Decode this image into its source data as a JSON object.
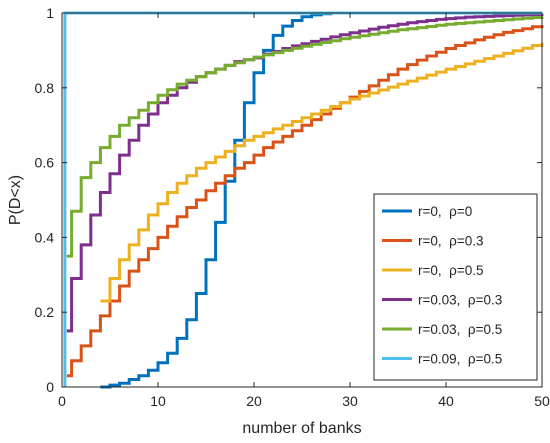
{
  "chart_data": {
    "type": "line",
    "title": "",
    "xlabel": "number of banks",
    "ylabel": "P(D<x)",
    "xlim": [
      0,
      50
    ],
    "ylim": [
      0,
      1
    ],
    "x_ticks": [
      "0",
      "10",
      "20",
      "30",
      "40",
      "50"
    ],
    "y_ticks": [
      "0",
      "0.2",
      "0.4",
      "0.6",
      "0.8",
      "1"
    ],
    "grid": false,
    "legend_position": "bottom-right",
    "series": [
      {
        "name": "r=0,  ρ=0",
        "color": "#0072BD",
        "points": [
          [
            4,
            0
          ],
          [
            5,
            0.005
          ],
          [
            6,
            0.01
          ],
          [
            7,
            0.02
          ],
          [
            8,
            0.03
          ],
          [
            9,
            0.045
          ],
          [
            10,
            0.065
          ],
          [
            11,
            0.09
          ],
          [
            12,
            0.13
          ],
          [
            13,
            0.18
          ],
          [
            14,
            0.25
          ],
          [
            15,
            0.34
          ],
          [
            16,
            0.44
          ],
          [
            17,
            0.55
          ],
          [
            18,
            0.66
          ],
          [
            19,
            0.76
          ],
          [
            20,
            0.84
          ],
          [
            21,
            0.9
          ],
          [
            22,
            0.94
          ],
          [
            23,
            0.965
          ],
          [
            24,
            0.98
          ],
          [
            25,
            0.99
          ],
          [
            26,
            0.995
          ],
          [
            27,
            0.998
          ],
          [
            28,
            1
          ],
          [
            50,
            1
          ]
        ]
      },
      {
        "name": "r=0,  ρ=0.3",
        "color": "#D95319",
        "points": [
          [
            0.5,
            0.03
          ],
          [
            1,
            0.07
          ],
          [
            2,
            0.11
          ],
          [
            3,
            0.15
          ],
          [
            4,
            0.19
          ],
          [
            5,
            0.23
          ],
          [
            6,
            0.27
          ],
          [
            7,
            0.31
          ],
          [
            8,
            0.34
          ],
          [
            9,
            0.37
          ],
          [
            10,
            0.4
          ],
          [
            11,
            0.43
          ],
          [
            12,
            0.455
          ],
          [
            13,
            0.48
          ],
          [
            14,
            0.5
          ],
          [
            15,
            0.525
          ],
          [
            16,
            0.545
          ],
          [
            17,
            0.565
          ],
          [
            18,
            0.585
          ],
          [
            19,
            0.6
          ],
          [
            20,
            0.62
          ],
          [
            21,
            0.64
          ],
          [
            22,
            0.655
          ],
          [
            23,
            0.67
          ],
          [
            24,
            0.685
          ],
          [
            25,
            0.7
          ],
          [
            26,
            0.715
          ],
          [
            27,
            0.73
          ],
          [
            28,
            0.745
          ],
          [
            29,
            0.76
          ],
          [
            30,
            0.775
          ],
          [
            31,
            0.79
          ],
          [
            32,
            0.805
          ],
          [
            33,
            0.82
          ],
          [
            34,
            0.835
          ],
          [
            35,
            0.85
          ],
          [
            36,
            0.862
          ],
          [
            37,
            0.874
          ],
          [
            38,
            0.885
          ],
          [
            39,
            0.895
          ],
          [
            40,
            0.905
          ],
          [
            41,
            0.913
          ],
          [
            42,
            0.92
          ],
          [
            43,
            0.928
          ],
          [
            44,
            0.935
          ],
          [
            45,
            0.942
          ],
          [
            46,
            0.948
          ],
          [
            47,
            0.953
          ],
          [
            48,
            0.958
          ],
          [
            49,
            0.963
          ],
          [
            50,
            0.968
          ]
        ]
      },
      {
        "name": "r=0,  ρ=0.5",
        "color": "#EDB120",
        "points": [
          [
            4,
            0.23
          ],
          [
            5,
            0.29
          ],
          [
            6,
            0.34
          ],
          [
            7,
            0.38
          ],
          [
            8,
            0.42
          ],
          [
            9,
            0.46
          ],
          [
            10,
            0.49
          ],
          [
            11,
            0.52
          ],
          [
            12,
            0.545
          ],
          [
            13,
            0.565
          ],
          [
            14,
            0.585
          ],
          [
            15,
            0.6
          ],
          [
            16,
            0.615
          ],
          [
            17,
            0.63
          ],
          [
            18,
            0.645
          ],
          [
            19,
            0.66
          ],
          [
            20,
            0.67
          ],
          [
            21,
            0.68
          ],
          [
            22,
            0.69
          ],
          [
            23,
            0.7
          ],
          [
            24,
            0.71
          ],
          [
            25,
            0.72
          ],
          [
            26,
            0.73
          ],
          [
            27,
            0.74
          ],
          [
            28,
            0.75
          ],
          [
            29,
            0.76
          ],
          [
            30,
            0.77
          ],
          [
            31,
            0.778
          ],
          [
            32,
            0.786
          ],
          [
            33,
            0.794
          ],
          [
            34,
            0.802
          ],
          [
            35,
            0.81
          ],
          [
            36,
            0.818
          ],
          [
            37,
            0.826
          ],
          [
            38,
            0.834
          ],
          [
            39,
            0.842
          ],
          [
            40,
            0.85
          ],
          [
            41,
            0.857
          ],
          [
            42,
            0.864
          ],
          [
            43,
            0.871
          ],
          [
            44,
            0.878
          ],
          [
            45,
            0.885
          ],
          [
            46,
            0.892
          ],
          [
            47,
            0.899
          ],
          [
            48,
            0.906
          ],
          [
            49,
            0.913
          ],
          [
            50,
            0.92
          ]
        ]
      },
      {
        "name": "r=0.03,  ρ=0.3",
        "color": "#7E2F8E",
        "points": [
          [
            0.5,
            0.15
          ],
          [
            1,
            0.29
          ],
          [
            2,
            0.38
          ],
          [
            3,
            0.46
          ],
          [
            4,
            0.52
          ],
          [
            5,
            0.57
          ],
          [
            6,
            0.62
          ],
          [
            7,
            0.66
          ],
          [
            8,
            0.7
          ],
          [
            9,
            0.73
          ],
          [
            10,
            0.76
          ],
          [
            11,
            0.78
          ],
          [
            12,
            0.8
          ],
          [
            13,
            0.815
          ],
          [
            14,
            0.83
          ],
          [
            15,
            0.84
          ],
          [
            16,
            0.85
          ],
          [
            17,
            0.86
          ],
          [
            18,
            0.87
          ],
          [
            19,
            0.875
          ],
          [
            20,
            0.88
          ],
          [
            21,
            0.89
          ],
          [
            22,
            0.897
          ],
          [
            23,
            0.905
          ],
          [
            24,
            0.912
          ],
          [
            25,
            0.918
          ],
          [
            26,
            0.924
          ],
          [
            27,
            0.93
          ],
          [
            28,
            0.936
          ],
          [
            29,
            0.942
          ],
          [
            30,
            0.947
          ],
          [
            31,
            0.952
          ],
          [
            32,
            0.957
          ],
          [
            33,
            0.962
          ],
          [
            34,
            0.966
          ],
          [
            35,
            0.97
          ],
          [
            36,
            0.974
          ],
          [
            37,
            0.977
          ],
          [
            38,
            0.98
          ],
          [
            39,
            0.983
          ],
          [
            40,
            0.985
          ],
          [
            41,
            0.987
          ],
          [
            42,
            0.989
          ],
          [
            43,
            0.99
          ],
          [
            44,
            0.991
          ],
          [
            45,
            0.992
          ],
          [
            46,
            0.993
          ],
          [
            47,
            0.994
          ],
          [
            48,
            0.995
          ],
          [
            49,
            0.996
          ],
          [
            50,
            0.997
          ]
        ]
      },
      {
        "name": "r=0.03,  ρ=0.5",
        "color": "#77AC30",
        "points": [
          [
            0.5,
            0.35
          ],
          [
            1,
            0.47
          ],
          [
            2,
            0.56
          ],
          [
            3,
            0.6
          ],
          [
            4,
            0.64
          ],
          [
            5,
            0.67
          ],
          [
            6,
            0.7
          ],
          [
            7,
            0.72
          ],
          [
            8,
            0.74
          ],
          [
            9,
            0.76
          ],
          [
            10,
            0.78
          ],
          [
            11,
            0.795
          ],
          [
            12,
            0.81
          ],
          [
            13,
            0.82
          ],
          [
            14,
            0.83
          ],
          [
            15,
            0.84
          ],
          [
            16,
            0.85
          ],
          [
            17,
            0.86
          ],
          [
            18,
            0.867
          ],
          [
            19,
            0.875
          ],
          [
            20,
            0.882
          ],
          [
            21,
            0.888
          ],
          [
            22,
            0.894
          ],
          [
            23,
            0.9
          ],
          [
            24,
            0.906
          ],
          [
            25,
            0.911
          ],
          [
            26,
            0.916
          ],
          [
            27,
            0.921
          ],
          [
            28,
            0.926
          ],
          [
            29,
            0.931
          ],
          [
            30,
            0.935
          ],
          [
            31,
            0.939
          ],
          [
            32,
            0.943
          ],
          [
            33,
            0.947
          ],
          [
            34,
            0.951
          ],
          [
            35,
            0.955
          ],
          [
            36,
            0.958
          ],
          [
            37,
            0.961
          ],
          [
            38,
            0.964
          ],
          [
            39,
            0.967
          ],
          [
            40,
            0.97
          ],
          [
            41,
            0.972
          ],
          [
            42,
            0.974
          ],
          [
            43,
            0.976
          ],
          [
            44,
            0.978
          ],
          [
            45,
            0.98
          ],
          [
            46,
            0.982
          ],
          [
            47,
            0.984
          ],
          [
            48,
            0.986
          ],
          [
            49,
            0.988
          ],
          [
            50,
            0.99
          ]
        ]
      },
      {
        "name": "r=0.09,  ρ=0.5",
        "color": "#4DBEEE",
        "points": [
          [
            0.3,
            0
          ],
          [
            0.3,
            1
          ],
          [
            50,
            1
          ]
        ]
      }
    ]
  }
}
